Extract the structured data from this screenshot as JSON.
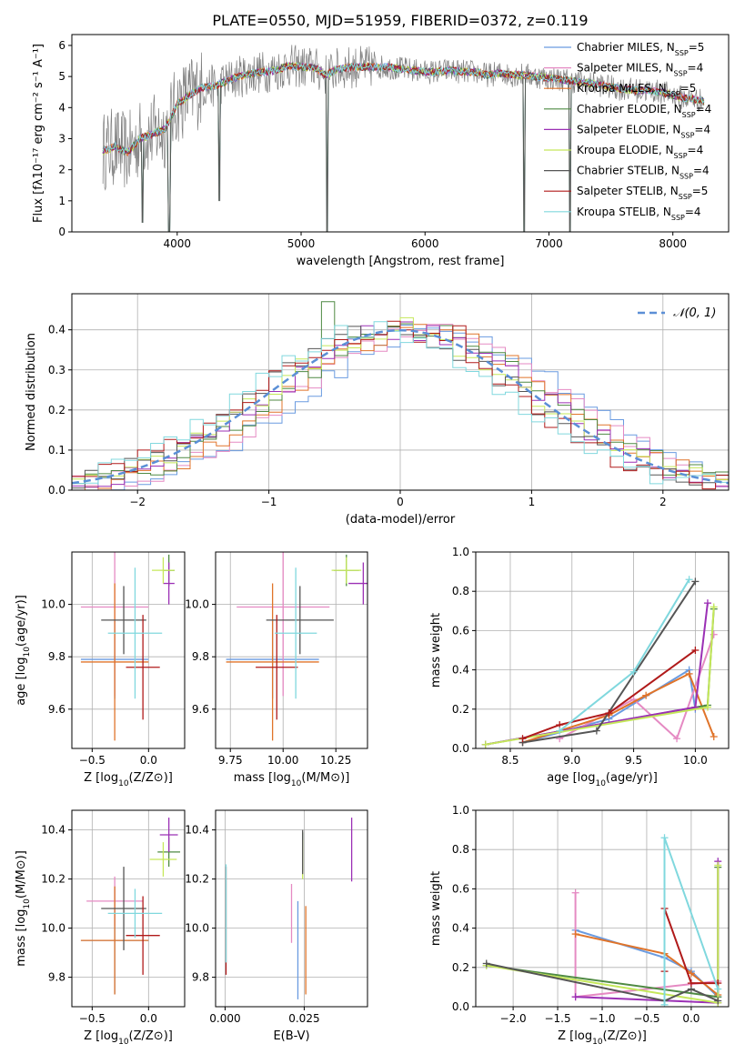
{
  "figure_title": "PLATE=0550, MJD=51959, FIBERID=0372, z=0.119",
  "colors": {
    "Chabrier MILES": "#6a9be0",
    "Salpeter MILES": "#e58ac3",
    "Kroupa MILES": "#e0742a",
    "Chabrier ELODIE": "#4f8a43",
    "Salpeter ELODIE": "#9b30b5",
    "Kroupa ELODIE": "#c5e85a",
    "Chabrier STELIB": "#555555",
    "Salpeter STELIB": "#b01a1a",
    "Kroupa STELIB": "#80d8de"
  },
  "chart_data": [
    {
      "id": "spectrum",
      "type": "line",
      "title": "PLATE=0550, MJD=51959, FIBERID=0372, z=0.119",
      "xlabel": "wavelength [Angstrom, rest frame]",
      "ylabel": "Flux [fλ10⁻¹⁷ erg cm⁻² s⁻¹ A⁻¹]",
      "xlim": [
        3150,
        8450
      ],
      "ylim": [
        0,
        6.35
      ],
      "xticks": [
        4000,
        5000,
        6000,
        7000,
        8000
      ],
      "yticks": [
        0,
        1,
        2,
        3,
        4,
        5,
        6
      ],
      "grid": false,
      "legend_position": "upper-right",
      "legend": [
        {
          "label": "Chabrier MILES, N",
          "sub": "SSP",
          "suffix": "=5"
        },
        {
          "label": "Salpeter MILES, N",
          "sub": "SSP",
          "suffix": "=4"
        },
        {
          "label": "Kroupa MILES, N",
          "sub": "SSP",
          "suffix": "=5"
        },
        {
          "label": "Chabrier ELODIE, N",
          "sub": "SSP",
          "suffix": "=4"
        },
        {
          "label": "Salpeter ELODIE, N",
          "sub": "SSP",
          "suffix": "=4"
        },
        {
          "label": "Kroupa ELODIE, N",
          "sub": "SSP",
          "suffix": "=4"
        },
        {
          "label": "Chabrier STELIB, N",
          "sub": "SSP",
          "suffix": "=4"
        },
        {
          "label": "Salpeter STELIB, N",
          "sub": "SSP",
          "suffix": "=5"
        },
        {
          "label": "Kroupa STELIB, N",
          "sub": "SSP",
          "suffix": "=4"
        }
      ],
      "series_continuum": {
        "x": [
          3400,
          3500,
          3600,
          3700,
          3800,
          3900,
          4000,
          4100,
          4200,
          4300,
          4400,
          4500,
          4600,
          4700,
          4800,
          4900,
          5000,
          5100,
          5200,
          5300,
          5400,
          5500,
          5600,
          5700,
          5800,
          5900,
          6000,
          6100,
          6200,
          6300,
          6400,
          6500,
          6600,
          6700,
          6800,
          6900,
          7000,
          7100,
          7200,
          7300,
          7400,
          7500,
          7600,
          7700,
          7800,
          7900,
          8000,
          8100,
          8200,
          8250
        ],
        "y": [
          2.6,
          2.75,
          2.55,
          3.0,
          3.15,
          3.3,
          4.1,
          4.4,
          4.65,
          4.7,
          4.85,
          5.0,
          5.1,
          5.15,
          5.2,
          5.35,
          5.3,
          5.3,
          5.05,
          5.25,
          5.3,
          5.3,
          5.3,
          5.3,
          5.25,
          5.2,
          5.15,
          5.15,
          5.2,
          5.15,
          5.15,
          5.05,
          5.1,
          5.05,
          5.05,
          5.0,
          4.95,
          4.9,
          4.85,
          4.8,
          4.75,
          4.65,
          4.6,
          4.55,
          4.55,
          4.5,
          4.4,
          4.3,
          4.25,
          4.2
        ]
      },
      "absorption_dips": [
        {
          "x": 3720,
          "y": 0.3
        },
        {
          "x": 3935,
          "y": 0.0
        },
        {
          "x": 4340,
          "y": 1.0
        },
        {
          "x": 5210,
          "y": 0.0
        },
        {
          "x": 6800,
          "y": 0.0
        },
        {
          "x": 7170,
          "y": 0.0
        }
      ]
    },
    {
      "id": "residuals",
      "type": "histogram",
      "xlabel": "(data-model)/error",
      "ylabel": "Normed distribution",
      "xlim": [
        -2.5,
        2.5
      ],
      "ylim": [
        0,
        0.49
      ],
      "xticks": [
        -2,
        -1,
        0,
        1,
        2
      ],
      "yticks": [
        0.0,
        0.1,
        0.2,
        0.3,
        0.4
      ],
      "grid": true,
      "legend": [
        {
          "label": "𝒩(0, 1)",
          "style": "dashed",
          "color": "#5b8fd6"
        }
      ],
      "bin_width": 0.1,
      "reference_curve": "normal(0,1)",
      "highlight_bins": [
        {
          "x": -0.6,
          "value": 0.47,
          "series": "Chabrier ELODIE"
        },
        {
          "x": -0.3,
          "value": 0.41,
          "series": "Salpeter ELODIE"
        },
        {
          "x": 0.4,
          "value": 0.41,
          "series": "Salpeter STELIB"
        },
        {
          "x": 0.0,
          "value": 0.43,
          "series": "Kroupa ELODIE"
        }
      ]
    },
    {
      "id": "age_vs_Z",
      "type": "errorbar",
      "xlabel": "Z [log10(Z/Z⊙)]",
      "ylabel": "age  [log10(age/yr)]",
      "xlim": [
        -0.68,
        0.32
      ],
      "ylim": [
        9.45,
        10.2
      ],
      "xticks": [
        -0.5,
        0.0
      ],
      "yticks": [
        9.6,
        9.8,
        10.0
      ],
      "grid": true,
      "points": [
        {
          "series": "Chabrier MILES",
          "x": -0.3,
          "xerr": 0.3,
          "y": 9.79,
          "yerr": 0.15
        },
        {
          "series": "Salpeter MILES",
          "x": -0.3,
          "xerr": 0.3,
          "y": 9.99,
          "yerr": 0.34
        },
        {
          "series": "Kroupa MILES",
          "x": -0.3,
          "xerr": 0.3,
          "y": 9.78,
          "yerr": 0.3
        },
        {
          "series": "Chabrier ELODIE",
          "x": 0.18,
          "xerr": 0.05,
          "y": 10.13,
          "yerr": 0.06
        },
        {
          "series": "Salpeter ELODIE",
          "x": 0.18,
          "xerr": 0.05,
          "y": 10.08,
          "yerr": 0.08
        },
        {
          "series": "Kroupa ELODIE",
          "x": 0.13,
          "xerr": 0.1,
          "y": 10.13,
          "yerr": 0.05
        },
        {
          "series": "Chabrier STELIB",
          "x": -0.22,
          "xerr": 0.2,
          "y": 9.94,
          "yerr": 0.13
        },
        {
          "series": "Salpeter STELIB",
          "x": -0.05,
          "xerr": 0.15,
          "y": 9.76,
          "yerr": 0.2
        },
        {
          "series": "Kroupa STELIB",
          "x": -0.12,
          "xerr": 0.24,
          "y": 9.89,
          "yerr": 0.25
        }
      ]
    },
    {
      "id": "age_vs_mass",
      "type": "errorbar",
      "xlabel": "mass [log10(M/M⊙)]",
      "ylabel": "",
      "xlim": [
        9.68,
        10.4
      ],
      "ylim": [
        9.45,
        10.2
      ],
      "xticks": [
        9.75,
        10.0,
        10.25
      ],
      "yticks": [
        9.6,
        9.8,
        10.0
      ],
      "grid": true,
      "points": [
        {
          "series": "Chabrier MILES",
          "x": 9.95,
          "xerr": 0.22,
          "y": 9.79,
          "yerr": 0.15
        },
        {
          "series": "Salpeter MILES",
          "x": 10.0,
          "xerr": 0.22,
          "y": 9.99,
          "yerr": 0.34
        },
        {
          "series": "Kroupa MILES",
          "x": 9.95,
          "xerr": 0.22,
          "y": 9.78,
          "yerr": 0.3
        },
        {
          "series": "Chabrier ELODIE",
          "x": 10.3,
          "xerr": 0.06,
          "y": 10.13,
          "yerr": 0.06
        },
        {
          "series": "Salpeter ELODIE",
          "x": 10.38,
          "xerr": 0.07,
          "y": 10.08,
          "yerr": 0.08
        },
        {
          "series": "Kroupa ELODIE",
          "x": 10.3,
          "xerr": 0.07,
          "y": 10.13,
          "yerr": 0.05
        },
        {
          "series": "Chabrier STELIB",
          "x": 10.08,
          "xerr": 0.16,
          "y": 9.94,
          "yerr": 0.13
        },
        {
          "series": "Salpeter STELIB",
          "x": 9.97,
          "xerr": 0.1,
          "y": 9.76,
          "yerr": 0.2
        },
        {
          "series": "Kroupa STELIB",
          "x": 10.06,
          "xerr": 0.1,
          "y": 9.89,
          "yerr": 0.25
        }
      ]
    },
    {
      "id": "mass_weight_vs_age",
      "type": "line",
      "xlabel": "age  [log10(age/yr)]",
      "ylabel": "mass weight",
      "xlim": [
        8.22,
        10.27
      ],
      "ylim": [
        0,
        1.0
      ],
      "xticks": [
        8.5,
        9.0,
        9.5,
        10.0
      ],
      "yticks": [
        0.0,
        0.2,
        0.4,
        0.6,
        0.8,
        1.0
      ],
      "grid": true,
      "series": [
        {
          "name": "Chabrier MILES",
          "x": [
            8.6,
            9.3,
            9.95,
            10.0
          ],
          "y": [
            0.03,
            0.15,
            0.4,
            0.2
          ]
        },
        {
          "name": "Salpeter MILES",
          "x": [
            8.9,
            9.5,
            9.85,
            10.15
          ],
          "y": [
            0.05,
            0.25,
            0.05,
            0.58
          ]
        },
        {
          "name": "Kroupa MILES",
          "x": [
            8.6,
            9.3,
            9.6,
            9.95,
            10.15
          ],
          "y": [
            0.03,
            0.17,
            0.27,
            0.38,
            0.06
          ]
        },
        {
          "name": "Chabrier ELODIE",
          "x": [
            8.3,
            10.1,
            10.15
          ],
          "y": [
            0.02,
            0.22,
            0.71
          ]
        },
        {
          "name": "Salpeter ELODIE",
          "x": [
            8.3,
            10.0,
            10.1
          ],
          "y": [
            0.02,
            0.21,
            0.74
          ]
        },
        {
          "name": "Kroupa ELODIE",
          "x": [
            8.3,
            10.1,
            10.15
          ],
          "y": [
            0.02,
            0.21,
            0.72
          ]
        },
        {
          "name": "Chabrier STELIB",
          "x": [
            8.6,
            9.2,
            10.0
          ],
          "y": [
            0.03,
            0.09,
            0.85
          ]
        },
        {
          "name": "Salpeter STELIB",
          "x": [
            8.6,
            8.9,
            9.3,
            10.0
          ],
          "y": [
            0.05,
            0.12,
            0.18,
            0.5
          ]
        },
        {
          "name": "Kroupa STELIB",
          "x": [
            8.9,
            9.5,
            9.95
          ],
          "y": [
            0.09,
            0.39,
            0.86
          ]
        }
      ]
    },
    {
      "id": "mass_vs_Z",
      "type": "errorbar",
      "xlabel": "Z [log10(Z/Z⊙)]",
      "ylabel": "mass [log10(M/M⊙)]",
      "xlim": [
        -0.68,
        0.32
      ],
      "ylim": [
        9.68,
        10.48
      ],
      "xticks": [
        -0.5,
        0.0
      ],
      "yticks": [
        9.8,
        10.0,
        10.2,
        10.4
      ],
      "grid": true,
      "points": [
        {
          "series": "Chabrier MILES",
          "x": -0.3,
          "xerr": 0.3,
          "y": 9.95,
          "yerr": 0.22
        },
        {
          "series": "Salpeter MILES",
          "x": -0.3,
          "xerr": 0.25,
          "y": 10.11,
          "yerr": 0.1
        },
        {
          "series": "Kroupa MILES",
          "x": -0.3,
          "xerr": 0.3,
          "y": 9.95,
          "yerr": 0.22
        },
        {
          "series": "Chabrier ELODIE",
          "x": 0.18,
          "xerr": 0.1,
          "y": 10.31,
          "yerr": 0.06
        },
        {
          "series": "Salpeter ELODIE",
          "x": 0.18,
          "xerr": 0.08,
          "y": 10.38,
          "yerr": 0.07
        },
        {
          "series": "Kroupa ELODIE",
          "x": 0.13,
          "xerr": 0.12,
          "y": 10.28,
          "yerr": 0.07
        },
        {
          "series": "Chabrier STELIB",
          "x": -0.22,
          "xerr": 0.2,
          "y": 10.08,
          "yerr": 0.17
        },
        {
          "series": "Salpeter STELIB",
          "x": -0.05,
          "xerr": 0.15,
          "y": 9.97,
          "yerr": 0.16
        },
        {
          "series": "Kroupa STELIB",
          "x": -0.12,
          "xerr": 0.24,
          "y": 10.06,
          "yerr": 0.1
        }
      ]
    },
    {
      "id": "mass_vs_ebv",
      "type": "errorbar",
      "xlabel": "E(B-V)",
      "ylabel": "",
      "xlim": [
        -0.003,
        0.045
      ],
      "ylim": [
        9.68,
        10.48
      ],
      "xticks": [
        0.0,
        0.025
      ],
      "yticks": [
        9.8,
        10.0,
        10.2,
        10.4
      ],
      "grid": true,
      "points": [
        {
          "series": "Chabrier MILES",
          "x": 0.023,
          "xerr": 0,
          "y": 9.91,
          "yerr": 0.2
        },
        {
          "series": "Salpeter MILES",
          "x": 0.021,
          "xerr": 0,
          "y": 10.06,
          "yerr": 0.12
        },
        {
          "series": "Kroupa MILES",
          "x": 0.0255,
          "xerr": 0,
          "y": 9.91,
          "yerr": 0.18
        },
        {
          "series": "Chabrier ELODIE",
          "x": 0.0245,
          "xerr": 0,
          "y": 10.31,
          "yerr": 0.08
        },
        {
          "series": "Salpeter ELODIE",
          "x": 0.04,
          "xerr": 0,
          "y": 10.32,
          "yerr": 0.13
        },
        {
          "series": "Kroupa ELODIE",
          "x": 0.0245,
          "xerr": 0,
          "y": 10.28,
          "yerr": 0.08
        },
        {
          "series": "Chabrier STELIB",
          "x": 0.0245,
          "xerr": 0,
          "y": 10.31,
          "yerr": 0.09
        },
        {
          "series": "Salpeter STELIB",
          "x": 0.0003,
          "xerr": 0,
          "y": 10.03,
          "yerr": 0.22
        },
        {
          "series": "Kroupa STELIB",
          "x": 0.0003,
          "xerr": 0,
          "y": 10.06,
          "yerr": 0.2
        }
      ]
    },
    {
      "id": "mass_weight_vs_Z",
      "type": "line",
      "xlabel": "Z [log10(Z/Z⊙)]",
      "ylabel": "mass weight",
      "xlim": [
        -2.42,
        0.42
      ],
      "ylim": [
        0,
        1.0
      ],
      "xticks": [
        -2.0,
        -1.5,
        -1.0,
        -0.5,
        0.0
      ],
      "yticks": [
        0.0,
        0.2,
        0.4,
        0.6,
        0.8,
        1.0
      ],
      "grid": true,
      "series": [
        {
          "name": "Chabrier MILES",
          "x": [
            -1.3,
            -0.3,
            0.0,
            0.3
          ],
          "y": [
            0.39,
            0.25,
            0.18,
            0.05
          ]
        },
        {
          "name": "Salpeter MILES",
          "x": [
            -1.3,
            -1.3,
            0.3
          ],
          "y": [
            0.58,
            0.05,
            0.13
          ]
        },
        {
          "name": "Kroupa MILES",
          "x": [
            -1.3,
            -0.3,
            0.0,
            0.3
          ],
          "y": [
            0.37,
            0.27,
            0.17,
            0.06
          ]
        },
        {
          "name": "Chabrier ELODIE",
          "x": [
            -2.3,
            0.3,
            0.3
          ],
          "y": [
            0.21,
            0.05,
            0.71
          ]
        },
        {
          "name": "Salpeter ELODIE",
          "x": [
            -1.3,
            0.3,
            0.3
          ],
          "y": [
            0.05,
            0.02,
            0.74
          ]
        },
        {
          "name": "Kroupa ELODIE",
          "x": [
            -2.3,
            0.3,
            0.3
          ],
          "y": [
            0.21,
            0.02,
            0.72
          ]
        },
        {
          "name": "Chabrier STELIB",
          "x": [
            -2.3,
            -0.3,
            0.0,
            0.3
          ],
          "y": [
            0.22,
            0.03,
            0.09,
            0.03
          ]
        },
        {
          "name": "Salpeter STELIB",
          "x": [
            -0.3,
            -0.3,
            0.0,
            0.3
          ],
          "y": [
            0.18,
            0.5,
            0.12,
            0.12
          ]
        },
        {
          "name": "Kroupa STELIB",
          "x": [
            -0.3,
            -0.3,
            0.3
          ],
          "y": [
            0.01,
            0.86,
            0.09
          ]
        }
      ]
    }
  ]
}
